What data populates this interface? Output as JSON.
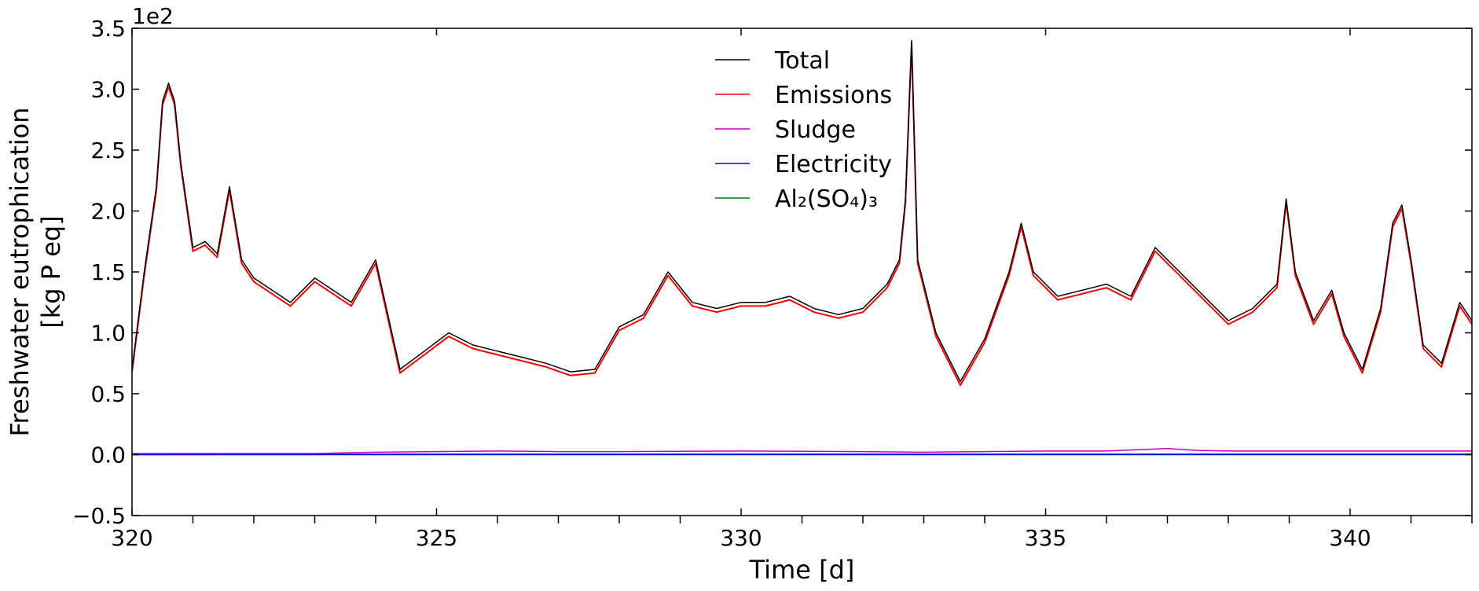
{
  "chart_data": {
    "type": "line",
    "title": "",
    "xlabel": "Time [d]",
    "ylabel_lines": [
      "Freshwater eutrophication",
      "[kg P eq]"
    ],
    "y_multiplier_label": "1e2",
    "xlim": [
      320,
      342
    ],
    "ylim": [
      -0.5,
      3.5
    ],
    "x_ticks": [
      320,
      325,
      330,
      335,
      340
    ],
    "x_tick_labels": [
      "320",
      "325",
      "330",
      "335",
      "340"
    ],
    "y_ticks": [
      -0.5,
      0.0,
      0.5,
      1.0,
      1.5,
      2.0,
      2.5,
      3.0,
      3.5
    ],
    "y_tick_labels": [
      "−0.5",
      "0.0",
      "0.5",
      "1.0",
      "1.5",
      "2.0",
      "2.5",
      "3.0",
      "3.5"
    ],
    "grid": false,
    "legend_position": "top-center",
    "series": [
      {
        "name": "Total",
        "color": "#000000",
        "x": [
          320.0,
          320.2,
          320.4,
          320.5,
          320.6,
          320.7,
          320.8,
          321.0,
          321.2,
          321.4,
          321.6,
          321.8,
          322.0,
          322.3,
          322.6,
          323.0,
          323.3,
          323.6,
          324.0,
          324.4,
          324.8,
          325.2,
          325.6,
          326.0,
          326.4,
          326.8,
          327.2,
          327.6,
          328.0,
          328.4,
          328.8,
          329.2,
          329.6,
          330.0,
          330.4,
          330.8,
          331.2,
          331.6,
          332.0,
          332.4,
          332.6,
          332.7,
          332.8,
          332.9,
          333.2,
          333.6,
          334.0,
          334.4,
          334.6,
          334.8,
          335.2,
          335.6,
          336.0,
          336.4,
          336.8,
          337.2,
          337.6,
          338.0,
          338.4,
          338.8,
          338.95,
          339.1,
          339.4,
          339.7,
          339.9,
          340.2,
          340.5,
          340.7,
          340.85,
          341.0,
          341.2,
          341.5,
          341.8,
          342.0
        ],
        "y": [
          0.7,
          1.5,
          2.2,
          2.9,
          3.05,
          2.9,
          2.4,
          1.7,
          1.75,
          1.65,
          2.2,
          1.6,
          1.45,
          1.35,
          1.25,
          1.45,
          1.35,
          1.25,
          1.6,
          0.7,
          0.85,
          1.0,
          0.9,
          0.85,
          0.8,
          0.75,
          0.68,
          0.7,
          1.05,
          1.15,
          1.5,
          1.25,
          1.2,
          1.25,
          1.25,
          1.3,
          1.2,
          1.15,
          1.2,
          1.4,
          1.6,
          2.1,
          3.4,
          1.6,
          1.0,
          0.6,
          0.95,
          1.5,
          1.9,
          1.5,
          1.3,
          1.35,
          1.4,
          1.3,
          1.7,
          1.5,
          1.3,
          1.1,
          1.2,
          1.4,
          2.1,
          1.5,
          1.1,
          1.35,
          1.0,
          0.7,
          1.2,
          1.9,
          2.05,
          1.6,
          0.9,
          0.75,
          1.25,
          1.1
        ]
      },
      {
        "name": "Emissions",
        "color": "#ff0000",
        "x": [
          320.0,
          320.2,
          320.4,
          320.5,
          320.6,
          320.7,
          320.8,
          321.0,
          321.2,
          321.4,
          321.6,
          321.8,
          322.0,
          322.3,
          322.6,
          323.0,
          323.3,
          323.6,
          324.0,
          324.4,
          324.8,
          325.2,
          325.6,
          326.0,
          326.4,
          326.8,
          327.2,
          327.6,
          328.0,
          328.4,
          328.8,
          329.2,
          329.6,
          330.0,
          330.4,
          330.8,
          331.2,
          331.6,
          332.0,
          332.4,
          332.6,
          332.7,
          332.8,
          332.9,
          333.2,
          333.6,
          334.0,
          334.4,
          334.6,
          334.8,
          335.2,
          335.6,
          336.0,
          336.4,
          336.8,
          337.2,
          337.6,
          338.0,
          338.4,
          338.8,
          338.95,
          339.1,
          339.4,
          339.7,
          339.9,
          340.2,
          340.5,
          340.7,
          340.85,
          341.0,
          341.2,
          341.5,
          341.8,
          342.0
        ],
        "y": [
          0.68,
          1.47,
          2.17,
          2.87,
          3.02,
          2.87,
          2.37,
          1.67,
          1.72,
          1.62,
          2.17,
          1.57,
          1.42,
          1.32,
          1.22,
          1.42,
          1.32,
          1.22,
          1.57,
          0.67,
          0.82,
          0.97,
          0.87,
          0.82,
          0.77,
          0.72,
          0.65,
          0.67,
          1.02,
          1.12,
          1.47,
          1.22,
          1.17,
          1.22,
          1.22,
          1.27,
          1.17,
          1.12,
          1.17,
          1.37,
          1.57,
          2.07,
          3.38,
          1.57,
          0.97,
          0.57,
          0.92,
          1.47,
          1.87,
          1.47,
          1.27,
          1.32,
          1.37,
          1.27,
          1.67,
          1.47,
          1.27,
          1.07,
          1.17,
          1.37,
          2.07,
          1.47,
          1.07,
          1.32,
          0.97,
          0.67,
          1.17,
          1.87,
          2.02,
          1.57,
          0.87,
          0.72,
          1.22,
          1.07
        ]
      },
      {
        "name": "Sludge",
        "color": "#bf00bf",
        "x": [
          320,
          322,
          323,
          324,
          325,
          326,
          327,
          328,
          330,
          332,
          333,
          334,
          335,
          336,
          336.5,
          337,
          337.5,
          338,
          340,
          342
        ],
        "y": [
          0.01,
          0.01,
          0.01,
          0.02,
          0.025,
          0.03,
          0.025,
          0.025,
          0.03,
          0.025,
          0.02,
          0.025,
          0.03,
          0.03,
          0.04,
          0.05,
          0.035,
          0.03,
          0.03,
          0.03
        ]
      },
      {
        "name": "Electricity",
        "color": "#0000ff",
        "x": [
          320,
          325,
          330,
          335,
          340,
          342
        ],
        "y": [
          0.0,
          0.0,
          0.0,
          0.0,
          0.0,
          0.0
        ]
      },
      {
        "name": "Al₂(SO₄)₃",
        "color": "#008000",
        "x": [
          320,
          325,
          330,
          335,
          340,
          342
        ],
        "y": [
          0.0,
          0.005,
          0.005,
          0.005,
          0.005,
          0.005
        ]
      }
    ],
    "legend_entries": [
      {
        "label": "Total",
        "color": "#000000"
      },
      {
        "label": "Emissions",
        "color": "#ff0000"
      },
      {
        "label": "Sludge",
        "color": "#bf00bf"
      },
      {
        "label": "Electricity",
        "color": "#0000ff"
      },
      {
        "label": "Al₂(SO₄)₃",
        "color": "#008000"
      }
    ]
  }
}
